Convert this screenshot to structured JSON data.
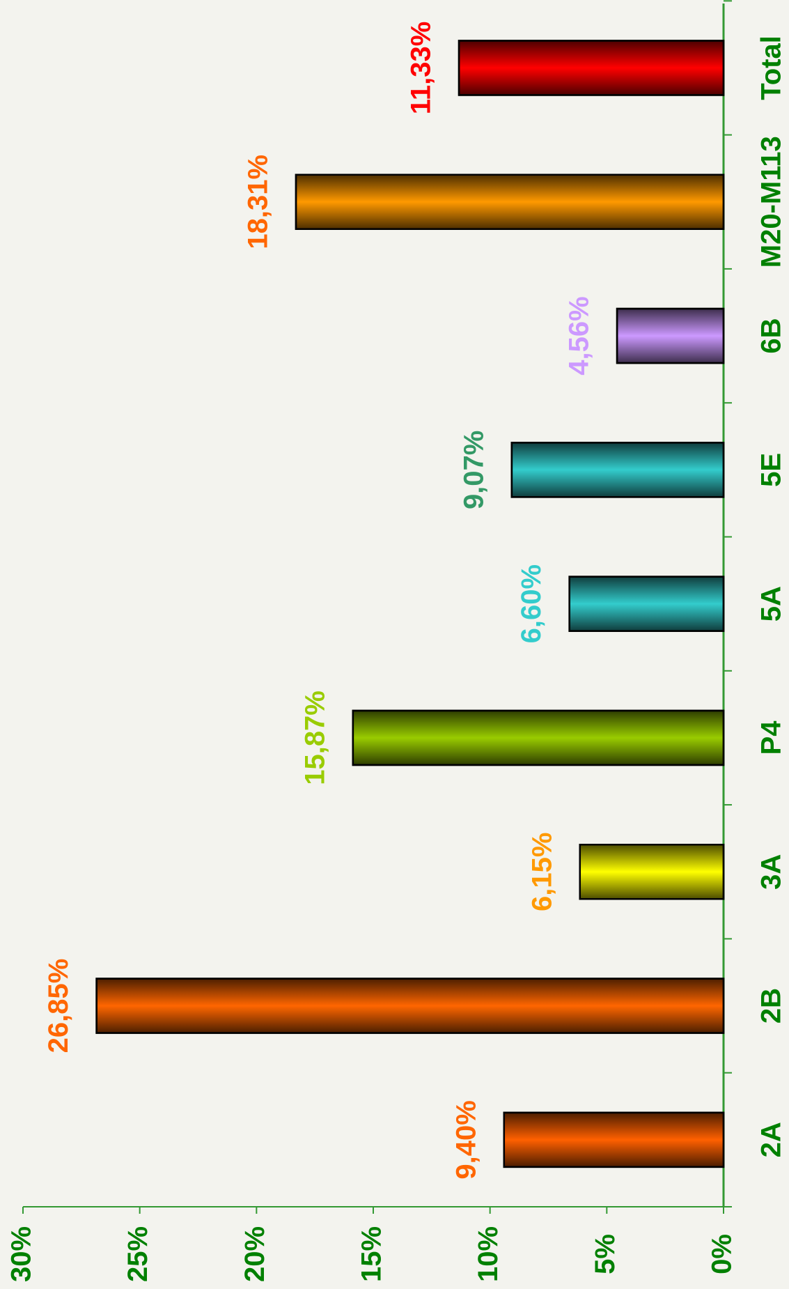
{
  "chart_data": {
    "type": "bar",
    "orientation": "horizontal",
    "categories": [
      "2A",
      "2B",
      "3A",
      "P4",
      "5A",
      "5E",
      "6B",
      "M20-M113",
      "Total"
    ],
    "values": [
      9.4,
      26.85,
      6.15,
      15.87,
      6.6,
      9.07,
      4.56,
      18.31,
      11.33
    ],
    "value_labels": [
      "9,40%",
      "26,85%",
      "6,15%",
      "15,87%",
      "6,60%",
      "9,07%",
      "4,56%",
      "18,31%",
      "11,33%"
    ],
    "colors": [
      "#ff6000",
      "#ff6600",
      "#ffff00",
      "#99cc00",
      "#33cccc",
      "#33cccc",
      "#cc99ff",
      "#ff9900",
      "#ff0000"
    ],
    "label_colors": [
      "#ff6600",
      "#ff6600",
      "#ff9900",
      "#99cc00",
      "#33cccc",
      "#339966",
      "#cc99ff",
      "#ff6600",
      "#ff0000"
    ],
    "ylim": [
      0,
      30
    ],
    "yticks": [
      {
        "value": 0,
        "label": "0%"
      },
      {
        "value": 5,
        "label": "5%"
      },
      {
        "value": 10,
        "label": "10%"
      },
      {
        "value": 15,
        "label": "15%"
      },
      {
        "value": 20,
        "label": "20%"
      },
      {
        "value": 25,
        "label": "25%"
      },
      {
        "value": 30,
        "label": "30%"
      }
    ]
  }
}
